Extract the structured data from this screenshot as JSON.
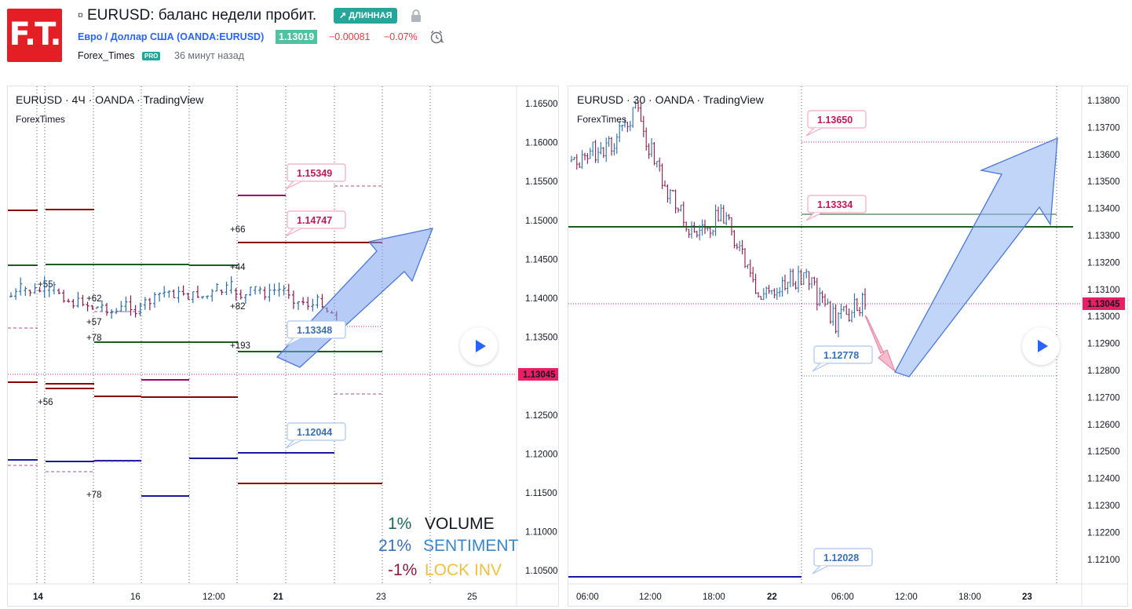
{
  "header": {
    "logo_text": "F.T.",
    "title": "▫ EURUSD: баланс недели пробит.",
    "badge": "↗ ДЛИННАЯ",
    "symbol": "Евро / Доллар США (OANDA:EURUSD)",
    "price": "1.13019",
    "change": "−0.00081",
    "change_pct": "−0.07%",
    "author": "Forex_Times",
    "pro": "PRO",
    "published": "36 минут назад"
  },
  "left_chart": {
    "title": "EURUSD · 4Ч · OANDA · TradingView",
    "subtitle": "ForexTimes",
    "price_axis": [
      "1.16500",
      "1.16000",
      "1.15500",
      "1.15000",
      "1.14500",
      "1.14000",
      "1.13500",
      "1.13000",
      "1.12500",
      "1.12000",
      "1.11500",
      "1.11000",
      "1.10500"
    ],
    "time_axis": [
      "14",
      "16",
      "12:00",
      "21",
      "23",
      "25"
    ],
    "current_price": "1.13045",
    "labels": [
      "1.15349",
      "1.14747",
      "1.13348",
      "1.12044"
    ],
    "pips": [
      "+66",
      "+44",
      "+55",
      "+62",
      "+57",
      "+78",
      "+82",
      "+193",
      "+56",
      "+78"
    ],
    "stats": [
      {
        "value": "1%",
        "name": "VOLUME",
        "value_color": "#1a6b5a",
        "name_color": "#131722"
      },
      {
        "value": "21%",
        "name": "SENTIMENT",
        "value_color": "#3a6fb5",
        "name_color": "#3a86c8"
      },
      {
        "value": "-1%",
        "name": "LOCK INV",
        "value_color": "#8b1a3a",
        "name_color": "#f0c040"
      }
    ]
  },
  "right_chart": {
    "title": "EURUSD · 30 · OANDA · TradingView",
    "subtitle": "ForexTimes",
    "price_axis": [
      "1.13800",
      "1.13700",
      "1.13600",
      "1.13500",
      "1.13400",
      "1.13300",
      "1.13200",
      "1.13100",
      "1.13000",
      "1.12900",
      "1.12800",
      "1.12700",
      "1.12600",
      "1.12500",
      "1.12400",
      "1.12300",
      "1.12200",
      "1.12100"
    ],
    "time_axis": [
      "06:00",
      "12:00",
      "18:00",
      "22",
      "06:00",
      "12:00",
      "18:00",
      "23"
    ],
    "current_price": "1.13045",
    "labels": [
      "1.13650",
      "1.13334",
      "1.12778",
      "1.12028"
    ]
  },
  "colors": {
    "accent": "#2962ff",
    "up": "#26a69a",
    "down": "#f23645",
    "current_price_bg": "#e91e63",
    "long_badge": "#26a69a"
  }
}
